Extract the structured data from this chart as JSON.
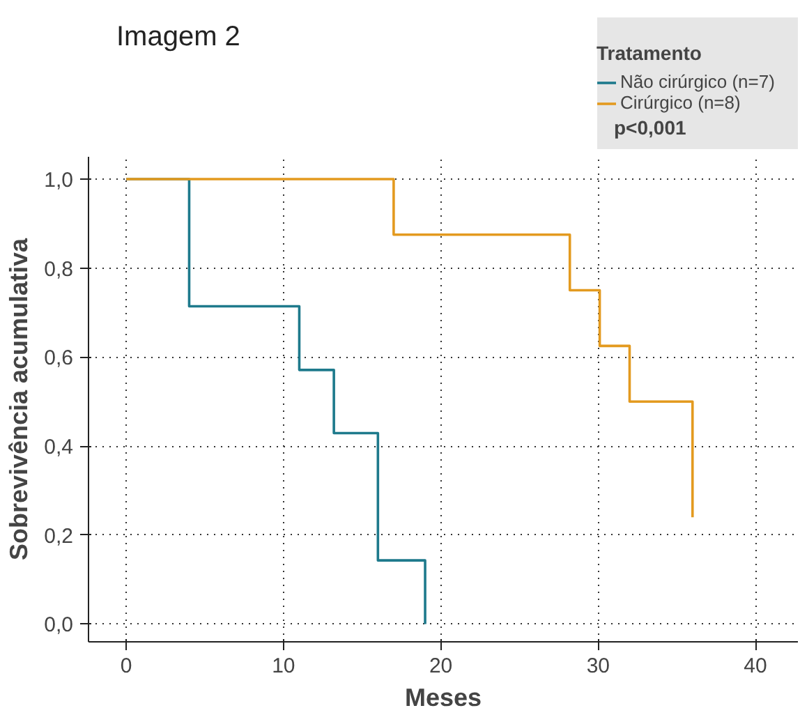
{
  "chart_data": {
    "type": "step",
    "title": "Imagem 2",
    "xlabel": "Meses",
    "ylabel": "Sobrevivência acumulativa",
    "legend_title": "Tratamento",
    "annotations": [
      "p<0,001"
    ],
    "series": [
      {
        "name": "Não cirúrgico (n=7)",
        "color": "#1e7a8c",
        "x": [
          0,
          4,
          11,
          13.2,
          16,
          19
        ],
        "values": [
          1.0,
          0.714,
          0.571,
          0.429,
          0.143,
          0.0
        ]
      },
      {
        "name": "Cirúrgico (n=8)",
        "color": "#e39a1f",
        "x": [
          0,
          17,
          28.2,
          30.1,
          32,
          36
        ],
        "values": [
          1.0,
          0.875,
          0.75,
          0.625,
          0.5,
          0.24
        ]
      }
    ],
    "xlim": [
      -2.4,
      42.7
    ],
    "xticks": [
      0,
      10,
      20,
      30,
      40
    ],
    "ylim": [
      -0.04,
      1.05
    ],
    "yticks": [
      {
        "value": 0,
        "label": "0,0"
      },
      {
        "value": 0.2,
        "label": "0,2"
      },
      {
        "value": 0.4,
        "label": "0,4"
      },
      {
        "value": 0.6,
        "label": "0,6"
      },
      {
        "value": 0.8,
        "label": "0,8"
      },
      {
        "value": 1.0,
        "label": "1,0"
      }
    ],
    "grid": true,
    "line_style": "solid",
    "legend": "top right"
  }
}
